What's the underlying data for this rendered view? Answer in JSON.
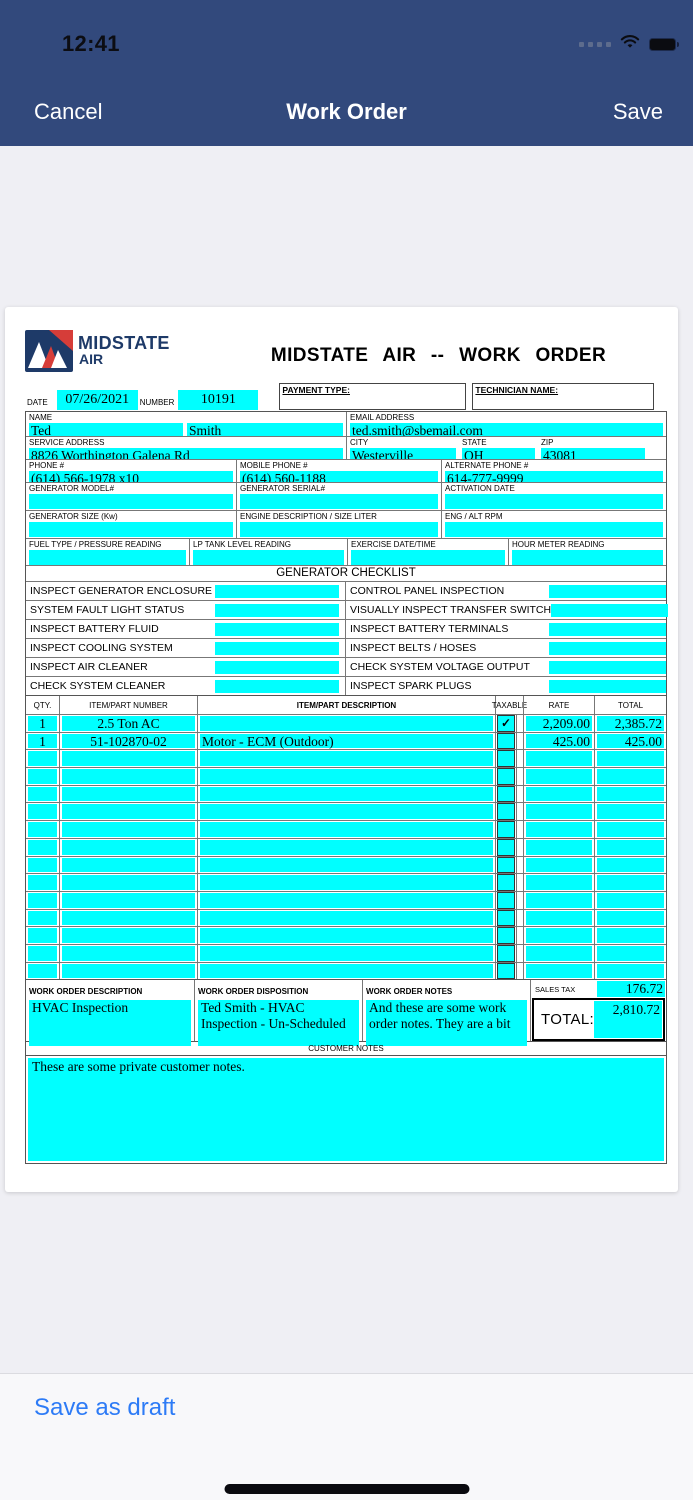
{
  "status_bar": {
    "time": "12:41",
    "icons": [
      "cellular-signal-icon",
      "wifi-icon",
      "battery-icon"
    ]
  },
  "nav_bar": {
    "cancel": "Cancel",
    "title": "Work Order",
    "save": "Save"
  },
  "doc": {
    "logo": {
      "line1": "MIDSTATE",
      "line2": "AIR"
    },
    "title": "MIDSTATE AIR -- WORK ORDER",
    "meta": {
      "date_label": "DATE",
      "date": "07/26/2021",
      "number_label": "NUMBER",
      "number": "10191",
      "payment_label": "PAYMENT TYPE:",
      "payment": "",
      "technician_label": "TECHNICIAN NAME:",
      "technician": ""
    },
    "contact": {
      "name_label": "NAME",
      "first_name": "Ted",
      "last_name": "Smith",
      "email_label": "EMAIL ADDRESS",
      "email": "ted.smith@sbemail.com",
      "address_label": "SERVICE ADDRESS",
      "address": "8826 Worthington Galena Rd",
      "city_label": "CITY",
      "city": "Westerville",
      "state_label": "STATE",
      "state": "OH",
      "zip_label": "ZIP",
      "zip": "43081",
      "phone_label": "PHONE #",
      "phone": "(614) 566-1978 x10",
      "mobile_label": "MOBILE PHONE #",
      "mobile": "(614) 560-1188",
      "alt_label": "ALTERNATE PHONE #",
      "alt_phone": "614-777-9999"
    },
    "generator": {
      "model_label": "GENERATOR MODEL#",
      "model": "",
      "serial_label": "GENERATOR SERIAL#",
      "serial": "",
      "activation_label": "ACTIVATION DATE",
      "activation": "",
      "size_label": "GENERATOR SIZE (Kw)",
      "size": "",
      "engine_label": "ENGINE DESCRIPTION / SIZE LITER",
      "engine": "",
      "rpm_label": "ENG / ALT RPM",
      "rpm": "",
      "fuel_label": "FUEL TYPE / PRESSURE READING",
      "fuel": "",
      "lp_label": "LP TANK LEVEL READING",
      "lp": "",
      "exercise_label": "EXERCISE DATE/TIME",
      "exercise": "",
      "hour_label": "HOUR METER READING",
      "hour": ""
    },
    "checklist": {
      "title": "GENERATOR CHECKLIST",
      "rows": [
        [
          "INSPECT GENERATOR ENCLOSURE",
          "CONTROL PANEL INSPECTION"
        ],
        [
          "SYSTEM FAULT LIGHT STATUS",
          "VISUALLY INSPECT TRANSFER SWITCH"
        ],
        [
          "INSPECT BATTERY FLUID",
          "INSPECT BATTERY TERMINALS"
        ],
        [
          "INSPECT COOLING SYSTEM",
          "INSPECT BELTS / HOSES"
        ],
        [
          "INSPECT AIR CLEANER",
          "CHECK SYSTEM VOLTAGE OUTPUT"
        ],
        [
          "CHECK SYSTEM CLEANER",
          "INSPECT SPARK PLUGS"
        ]
      ]
    },
    "items": {
      "headers": [
        "QTY.",
        "ITEM/PART NUMBER",
        "ITEM/PART DESCRIPTION",
        "TAXABLE",
        "RATE",
        "TOTAL"
      ],
      "check_glyph": "✓",
      "rows": [
        {
          "qty": "1",
          "part": "2.5 Ton AC",
          "desc": "",
          "taxable": true,
          "rate": "2,209.00",
          "total": "2,385.72"
        },
        {
          "qty": "1",
          "part": "51-102870-02",
          "desc": "Motor - ECM (Outdoor)",
          "taxable": false,
          "rate": "425.00",
          "total": "425.00"
        }
      ],
      "empty_rows": 13
    },
    "summary": {
      "description_label": "WORK ORDER DESCRIPTION",
      "description": "HVAC Inspection",
      "disposition_label": "WORK ORDER DISPOSITION",
      "disposition": "Ted Smith - HVAC Inspection - Un-Scheduled",
      "notes_label": "WORK ORDER NOTES",
      "notes": "And these are some work order notes. They are a bit",
      "sales_tax_label": "SALES TAX",
      "sales_tax": "176.72",
      "total_label": "TOTAL:",
      "total": "2,810.72"
    },
    "customer_notes": {
      "label": "CUSTOMER NOTES",
      "text": "These are some private customer notes."
    }
  },
  "footer": {
    "save_as_draft": "Save as draft"
  },
  "colors": {
    "field": "#00ffff",
    "nav_bg": "#32497c",
    "link_blue": "#2d7bf6",
    "logo_navy": "#1e3a68",
    "logo_red": "#d63d39"
  }
}
